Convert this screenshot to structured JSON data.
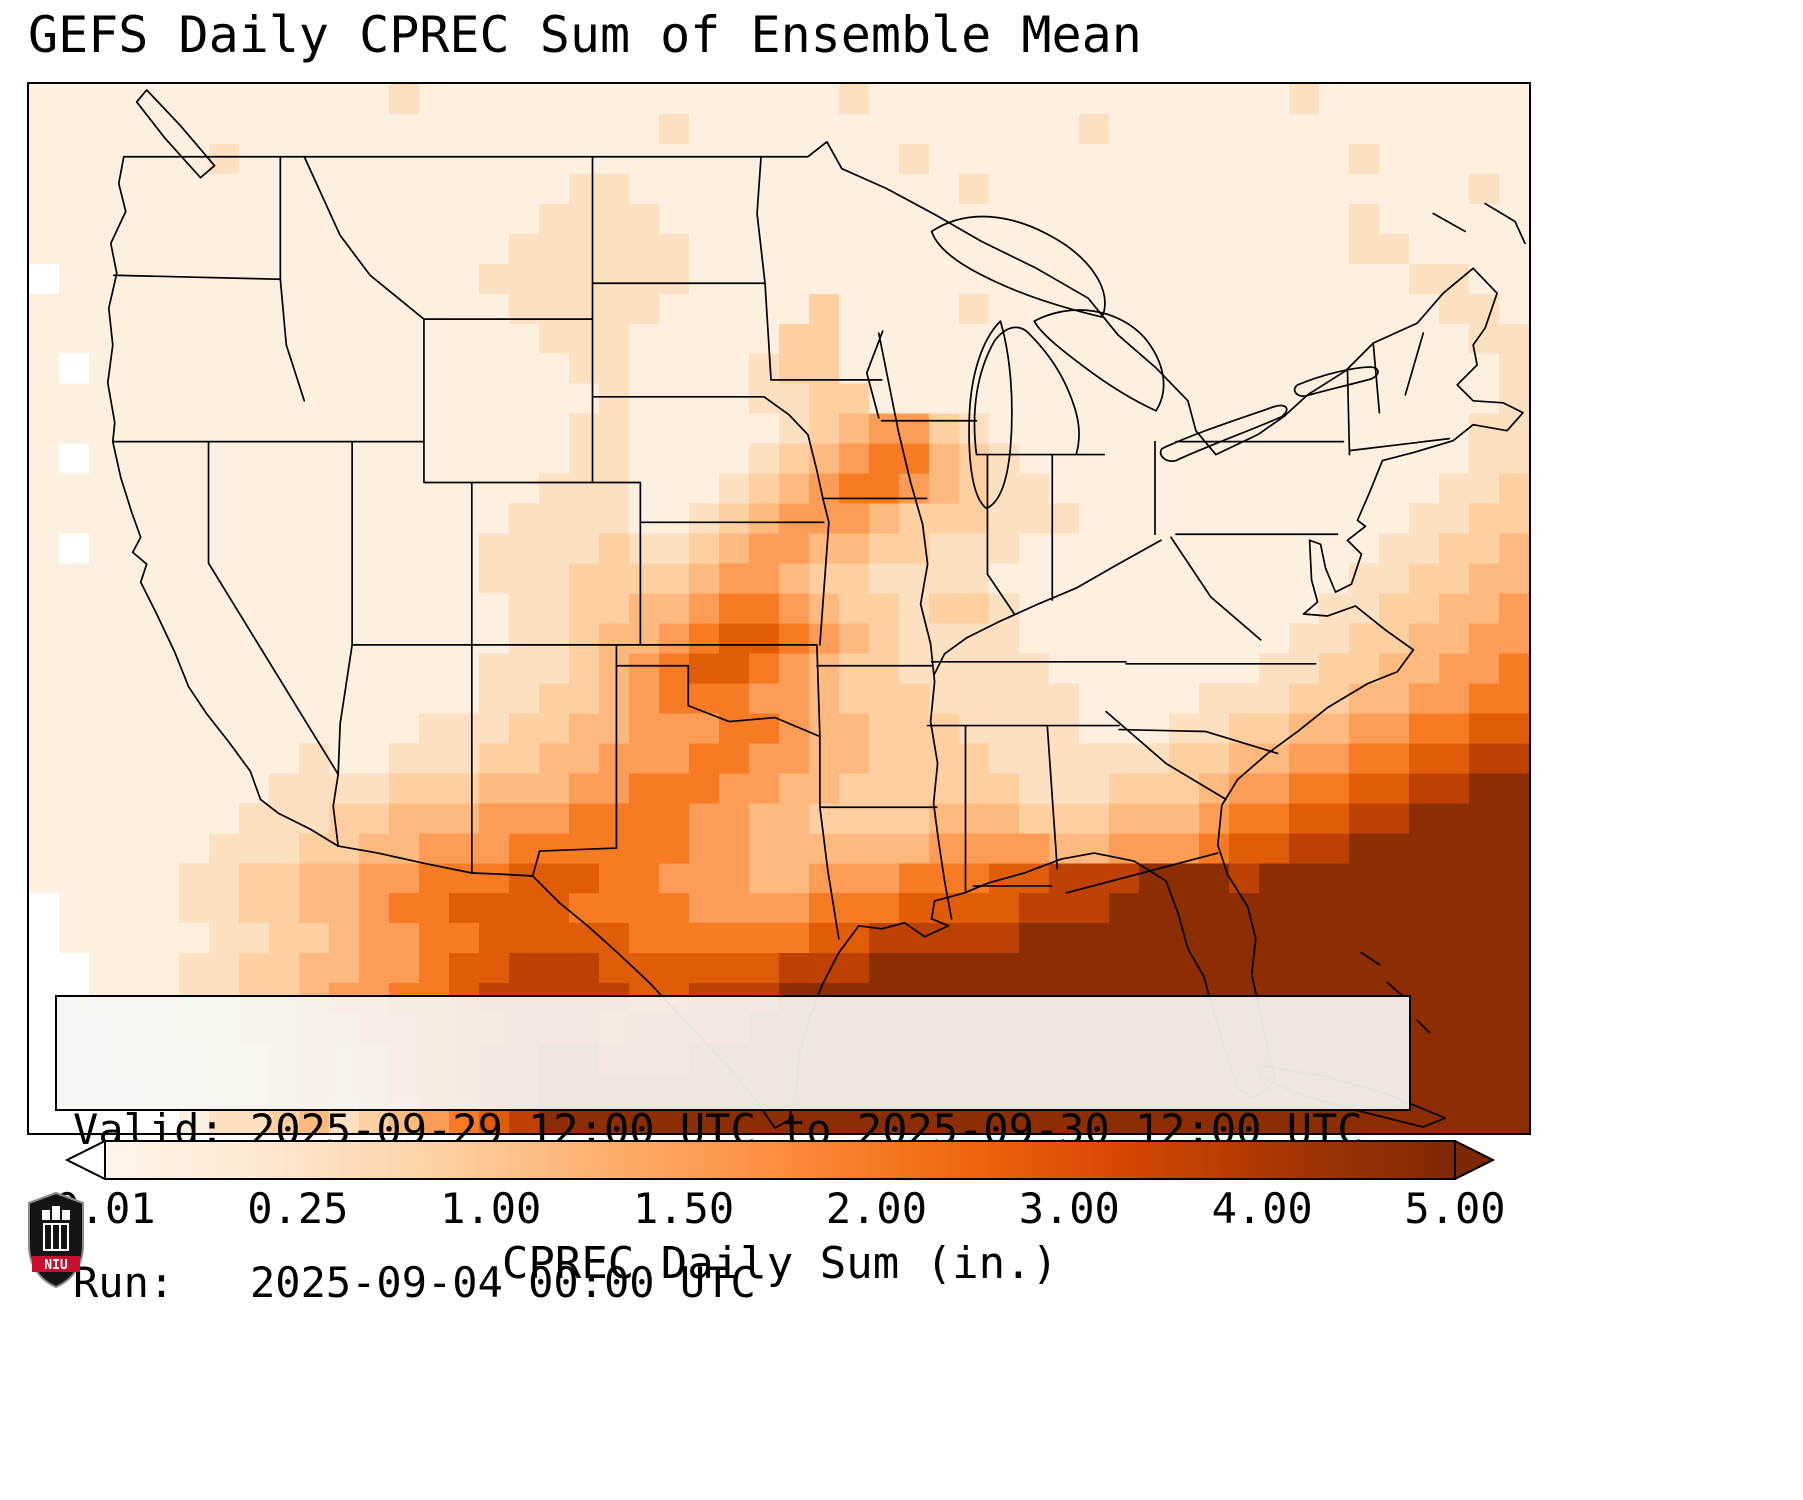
{
  "title": "GEFS Daily CPREC Sum of Ensemble Mean",
  "info_box": {
    "valid_line": "Valid: 2025-09-29 12:00 UTC to 2025-09-30 12:00 UTC",
    "run_line": "Run:   2025-09-04 00:00 UTC"
  },
  "logo": {
    "text": "NIU"
  },
  "chart_data": {
    "type": "heatmap",
    "title": "GEFS Daily CPREC Sum of Ensemble Mean",
    "region": "Continental United States with northern Mexico, Gulf of Mexico and western Atlantic; state and coastline boundaries overlaid",
    "colorbar": {
      "label": "CPREC Daily Sum (in.)",
      "tick_labels": [
        "0.01",
        "0.25",
        "1.00",
        "1.50",
        "2.00",
        "3.00",
        "4.00",
        "5.00"
      ],
      "gradient_colors": [
        "#fff5eb",
        "#fee6ce",
        "#fdd0a2",
        "#fdae6b",
        "#fd8d3c",
        "#f16913",
        "#d94801",
        "#a63603",
        "#7f2704"
      ],
      "under_color": "#ffffff",
      "over_color": "#7f2704",
      "extend": "both",
      "orientation": "horizontal"
    },
    "levels": [
      {
        "code": 0,
        "value_in": "0.00",
        "color": "#ffffff"
      },
      {
        "code": 1,
        "value_in": "0.01-0.10",
        "color": "#fdf0e0"
      },
      {
        "code": 2,
        "value_in": "0.10-0.25",
        "color": "#fce0c2"
      },
      {
        "code": 3,
        "value_in": "0.25-0.50",
        "color": "#fdcfa1"
      },
      {
        "code": 4,
        "value_in": "0.50-1.00",
        "color": "#fdb97e"
      },
      {
        "code": 5,
        "value_in": "1.00-1.50",
        "color": "#fd9c56"
      },
      {
        "code": 6,
        "value_in": "1.50-2.00",
        "color": "#f67b24"
      },
      {
        "code": 7,
        "value_in": "2.00-3.00",
        "color": "#e05c09"
      },
      {
        "code": 8,
        "value_in": "3.00-4.00",
        "color": "#bc4102"
      },
      {
        "code": 9,
        "value_in": "4.00-5.00+",
        "color": "#8c2d04"
      }
    ],
    "grid": {
      "cols": 50,
      "rows": 35,
      "encoding": "one digit per cell, row-major from map top-left; digit = levels[].code (approximate daily precipitation)",
      "rows_data": [
        "11111111111121111111111111121111111111111121111111",
        "11111111111111111111121111111111111211111111111111",
        "11111121111111111111111111111211111111111111211111",
        "11111111111111111122111111111112111111111111111121",
        "11111111111111111222211111111111111111111111211111",
        "11111111111111112222221111111111111111111111221111",
        "01111111111111122222221111111111111111111111112211",
        "11111111111111112222211111311112111111111111111221",
        "11111111111111111222111113311111111111111111111122",
        "10111111111111111122111123311111111111111111111112",
        "11111111111111111112111122331111111111111111111112",
        "11111111111111111122111112345532111111111111111122",
        "10111111111111111122111123456643211111111111111122",
        "11111111111111111222111234566543221111111111111223",
        "11111111111111112222112345554333222111111111112233",
        "10111111111111122223223455443322211111111111122334",
        "11111111111111122233334554332222111111111111223344",
        "11111111111111112233445665433233211111111112233445",
        "11111111111111112234456776543222211111111122334455",
        "11111111111111122234567765433222221111111223344556",
        "11111111111111122334566655433322222111122233445566",
        "11111111111112223344555665443332222111223344556677",
        "11111111121122233445556655443333222222334455667788",
        "11111111222233344455666554433333322233345566778899",
        "11111112223344455566665544333344433344456677889999",
        "11111122233445556666665544444455554455567788999999",
        "11111223344556667776655544555666778889998999999999",
        "01111223344566777766665555666777788899999999999999",
        "01111122334556677777666666778888899999999999999999",
        "00111223344556778887777778889999999999999999999999",
        "00111223345566788888778889999999999999999999999999",
        "00011223344556778887888899999999999999999999999999",
        "00011122343456788998889999999999999999999999999999",
        "00001122343456788999999999999999999999999999999999",
        "00000122342345678999999999999999999999999999999999"
      ]
    }
  }
}
